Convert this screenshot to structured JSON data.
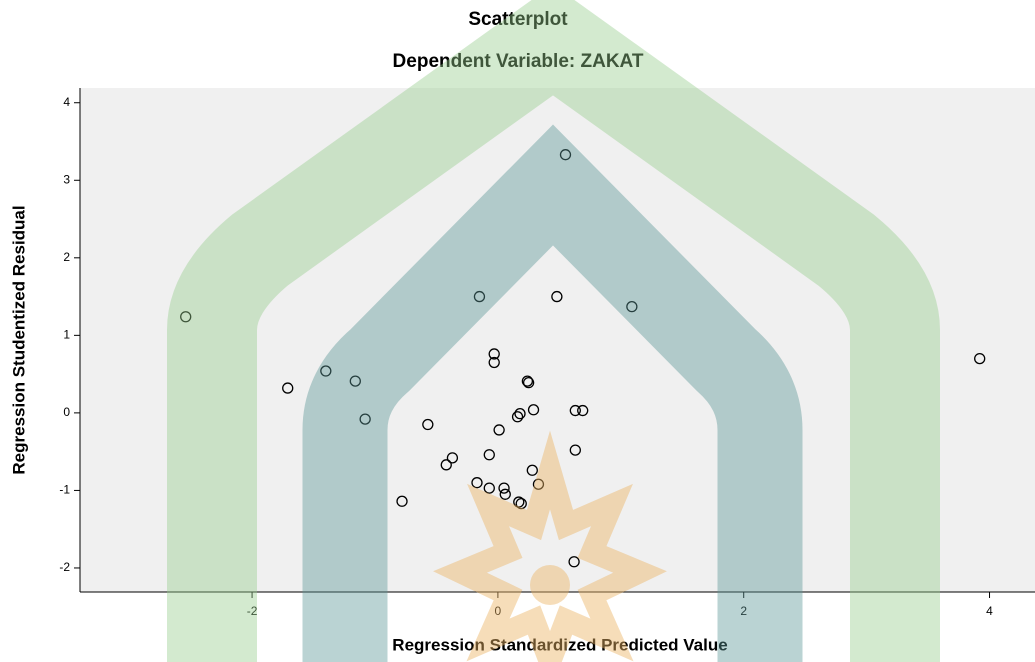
{
  "chart_data": {
    "type": "scatter",
    "title": "Scatterplot",
    "subtitle": "Dependent Variable: ZAKAT",
    "x_label": "Regression Standardized Predicted Value",
    "y_label": "Regression Studentized Residual",
    "x": [
      -2.54,
      -1.71,
      -1.4,
      -1.16,
      -1.08,
      -0.57,
      -0.78,
      -0.42,
      -0.37,
      -0.15,
      -0.03,
      -0.03,
      0.01,
      -0.07,
      -0.17,
      -0.07,
      0.05,
      0.06,
      0.17,
      0.19,
      0.16,
      0.18,
      0.24,
      0.25,
      0.29,
      0.28,
      0.33,
      0.48,
      0.55,
      0.63,
      0.69,
      0.63,
      0.62,
      1.09,
      3.92
    ],
    "values": [
      1.24,
      0.32,
      0.54,
      0.41,
      -0.08,
      -0.15,
      -1.14,
      -0.67,
      -0.58,
      1.5,
      0.76,
      0.65,
      -0.22,
      -0.54,
      -0.9,
      -0.97,
      -0.97,
      -1.05,
      -1.15,
      -1.17,
      -0.05,
      -0.01,
      0.41,
      0.39,
      0.04,
      -0.74,
      -0.92,
      1.5,
      3.33,
      0.03,
      0.03,
      -0.48,
      -1.92,
      1.37,
      0.7
    ],
    "color": "#000000",
    "xlim": [
      -3.4,
      4.37
    ],
    "xticks": [
      -2,
      0,
      2,
      4
    ],
    "ylim": [
      -2.31,
      4.19
    ],
    "yticks": [
      -2,
      -1,
      0,
      1,
      2,
      3,
      4
    ]
  }
}
